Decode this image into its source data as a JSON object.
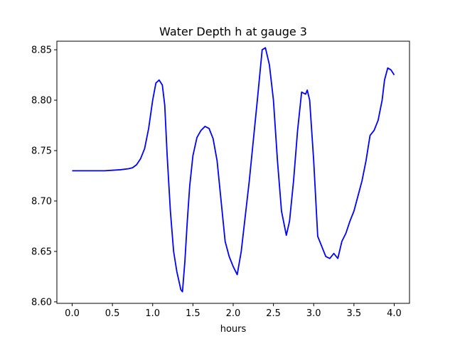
{
  "chart_data": {
    "type": "line",
    "title": "Water Depth h at gauge 3",
    "xlabel": "hours",
    "ylabel": "",
    "xlim": [
      -0.19,
      4.19
    ],
    "ylim": [
      8.5985,
      8.8585
    ],
    "xticks": [
      0.0,
      0.5,
      1.0,
      1.5,
      2.0,
      2.5,
      3.0,
      3.5,
      4.0
    ],
    "xtick_labels": [
      "0.0",
      "0.5",
      "1.0",
      "1.5",
      "2.0",
      "2.5",
      "3.0",
      "3.5",
      "4.0"
    ],
    "yticks": [
      8.6,
      8.65,
      8.7,
      8.75,
      8.8,
      8.85
    ],
    "ytick_labels": [
      "8.60",
      "8.65",
      "8.70",
      "8.75",
      "8.80",
      "8.85"
    ],
    "grid": false,
    "legend": "none",
    "series": [
      {
        "color": "#0000ff",
        "x": [
          0.0,
          0.2,
          0.4,
          0.6,
          0.7,
          0.75,
          0.8,
          0.85,
          0.9,
          0.95,
          1.0,
          1.04,
          1.08,
          1.12,
          1.15,
          1.18,
          1.22,
          1.26,
          1.3,
          1.35,
          1.37,
          1.4,
          1.43,
          1.46,
          1.5,
          1.55,
          1.6,
          1.65,
          1.7,
          1.75,
          1.8,
          1.85,
          1.9,
          1.95,
          2.0,
          2.05,
          2.1,
          2.2,
          2.3,
          2.36,
          2.4,
          2.45,
          2.5,
          2.55,
          2.6,
          2.66,
          2.7,
          2.75,
          2.8,
          2.85,
          2.9,
          2.92,
          2.95,
          3.0,
          3.05,
          3.1,
          3.15,
          3.2,
          3.25,
          3.3,
          3.35,
          3.4,
          3.45,
          3.5,
          3.55,
          3.6,
          3.65,
          3.7,
          3.75,
          3.8,
          3.85,
          3.88,
          3.92,
          3.96,
          4.0
        ],
        "y": [
          8.73,
          8.73,
          8.73,
          8.731,
          8.732,
          8.733,
          8.736,
          8.742,
          8.752,
          8.772,
          8.8,
          8.817,
          8.82,
          8.815,
          8.795,
          8.745,
          8.69,
          8.65,
          8.63,
          8.612,
          8.61,
          8.64,
          8.68,
          8.715,
          8.745,
          8.763,
          8.77,
          8.774,
          8.772,
          8.762,
          8.74,
          8.7,
          8.66,
          8.645,
          8.635,
          8.627,
          8.65,
          8.72,
          8.8,
          8.85,
          8.852,
          8.835,
          8.8,
          8.74,
          8.69,
          8.666,
          8.68,
          8.72,
          8.77,
          8.808,
          8.806,
          8.81,
          8.8,
          8.74,
          8.665,
          8.655,
          8.645,
          8.643,
          8.648,
          8.643,
          8.66,
          8.668,
          8.68,
          8.69,
          8.705,
          8.72,
          8.74,
          8.765,
          8.77,
          8.78,
          8.8,
          8.82,
          8.832,
          8.83,
          8.825
        ]
      }
    ]
  }
}
